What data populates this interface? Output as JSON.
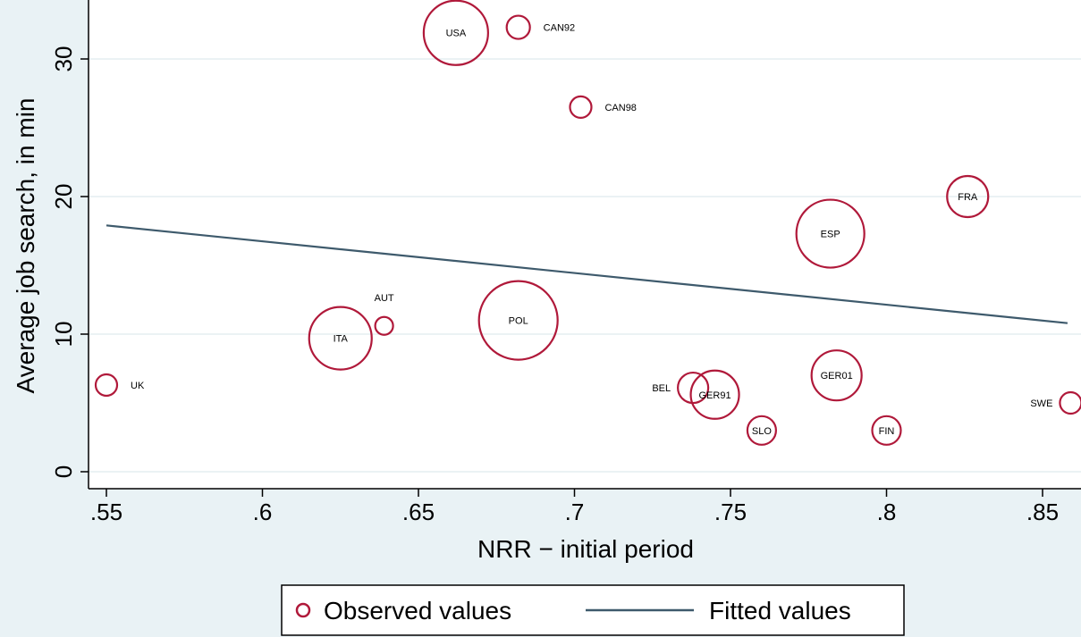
{
  "chart_data": {
    "type": "scatter",
    "xlabel": "NRR − initial period",
    "ylabel": "Average job search, in min",
    "xlim": [
      0.55,
      0.86
    ],
    "ylim": [
      0,
      33
    ],
    "xticks": [
      {
        "value": 0.55,
        "label": ".55"
      },
      {
        "value": 0.6,
        "label": ".6"
      },
      {
        "value": 0.65,
        "label": ".65"
      },
      {
        "value": 0.7,
        "label": ".7"
      },
      {
        "value": 0.75,
        "label": ".75"
      },
      {
        "value": 0.8,
        "label": ".8"
      },
      {
        "value": 0.85,
        "label": ".85"
      }
    ],
    "yticks": [
      {
        "value": 0,
        "label": "0"
      },
      {
        "value": 10,
        "label": "10"
      },
      {
        "value": 20,
        "label": "20"
      },
      {
        "value": 30,
        "label": "30"
      }
    ],
    "grid": "horizontal",
    "series": [
      {
        "name": "Observed values",
        "color": "#b0193a",
        "points": [
          {
            "label": "UK",
            "x": 0.55,
            "y": 6.3,
            "weight": 12,
            "label_side": "right"
          },
          {
            "label": "ITA",
            "x": 0.625,
            "y": 9.7,
            "weight": 35,
            "label_side": "center"
          },
          {
            "label": "AUT",
            "x": 0.639,
            "y": 10.6,
            "weight": 10,
            "label_side": "above"
          },
          {
            "label": "USA",
            "x": 0.662,
            "y": 31.9,
            "weight": 36,
            "label_side": "center"
          },
          {
            "label": "CAN92",
            "x": 0.682,
            "y": 32.3,
            "weight": 13,
            "label_side": "right"
          },
          {
            "label": "POL",
            "x": 0.682,
            "y": 11.0,
            "weight": 44,
            "label_side": "center"
          },
          {
            "label": "CAN98",
            "x": 0.702,
            "y": 26.5,
            "weight": 12,
            "label_side": "right"
          },
          {
            "label": "BEL",
            "x": 0.738,
            "y": 6.1,
            "weight": 17,
            "label_side": "left"
          },
          {
            "label": "GER91",
            "x": 0.745,
            "y": 5.6,
            "weight": 27,
            "label_side": "center"
          },
          {
            "label": "SLO",
            "x": 0.76,
            "y": 3.0,
            "weight": 16,
            "label_side": "center"
          },
          {
            "label": "ESP",
            "x": 0.782,
            "y": 17.3,
            "weight": 38,
            "label_side": "center"
          },
          {
            "label": "GER01",
            "x": 0.784,
            "y": 7.0,
            "weight": 28,
            "label_side": "center"
          },
          {
            "label": "FIN",
            "x": 0.8,
            "y": 3.0,
            "weight": 16,
            "label_side": "center"
          },
          {
            "label": "FRA",
            "x": 0.826,
            "y": 20.0,
            "weight": 23,
            "label_side": "center"
          },
          {
            "label": "SWE",
            "x": 0.859,
            "y": 5.0,
            "weight": 12,
            "label_side": "left"
          }
        ]
      },
      {
        "name": "Fitted values",
        "color": "#3e5a6c",
        "line": [
          {
            "x": 0.55,
            "y": 17.9
          },
          {
            "x": 0.858,
            "y": 10.8
          }
        ]
      }
    ],
    "legend": {
      "placement": "bottom-center"
    }
  }
}
